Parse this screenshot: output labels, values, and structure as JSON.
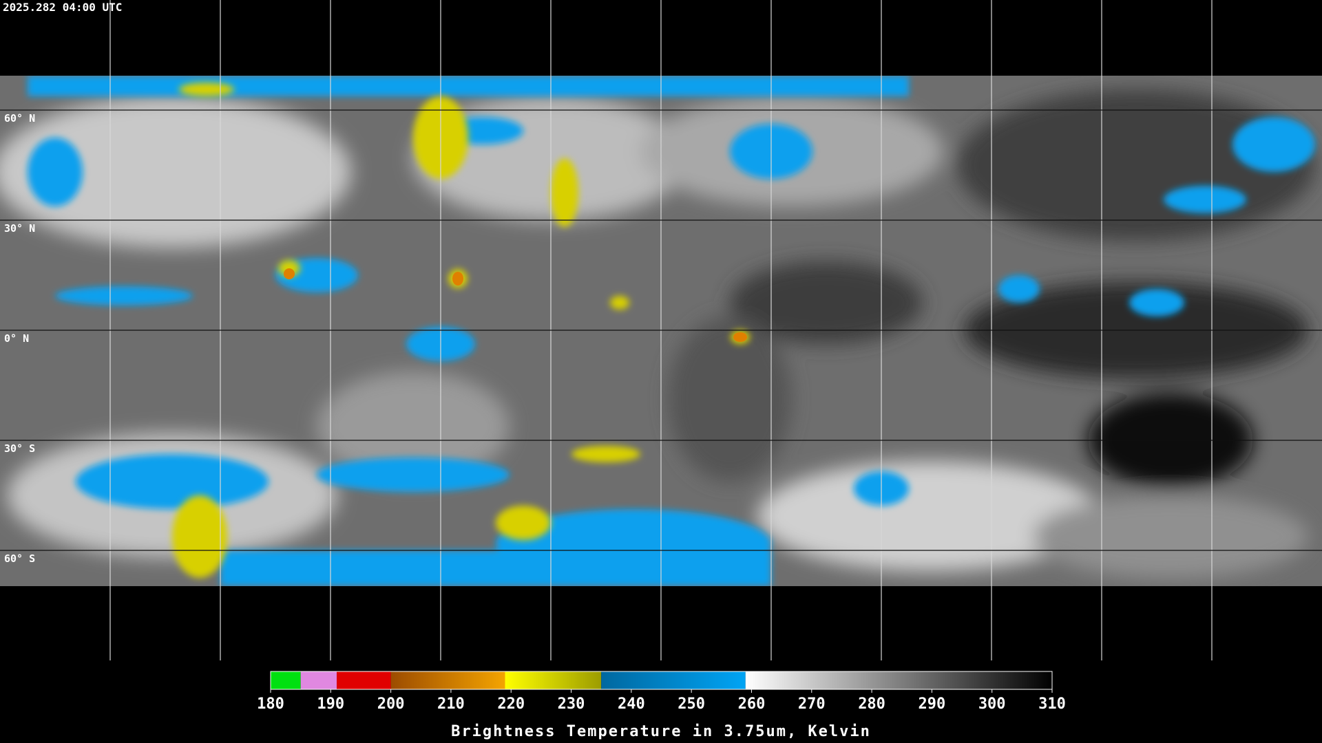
{
  "header": {
    "timestamp": "2025.282 04:00 UTC"
  },
  "map": {
    "latitudes": [
      {
        "value": 60,
        "label": "60° N"
      },
      {
        "value": 30,
        "label": "30° N"
      },
      {
        "value": 0,
        "label": "0° N"
      },
      {
        "value": -30,
        "label": "30° S"
      },
      {
        "value": -60,
        "label": "60° S"
      }
    ]
  },
  "colorbar": {
    "title": "Brightness Temperature in 3.75um, Kelvin",
    "range": [
      180,
      310
    ],
    "ticks": [
      180,
      190,
      200,
      210,
      220,
      230,
      240,
      250,
      260,
      270,
      280,
      290,
      300,
      310
    ],
    "segments": [
      {
        "from": 180,
        "to": 185,
        "colors": [
          "#00e010",
          "#00e010"
        ]
      },
      {
        "from": 185,
        "to": 191,
        "colors": [
          "#e088e0",
          "#e088e0"
        ]
      },
      {
        "from": 191,
        "to": 200,
        "colors": [
          "#e00000",
          "#e00000"
        ]
      },
      {
        "from": 200,
        "to": 219,
        "colors": [
          "#9c4c00",
          "#f4a400"
        ]
      },
      {
        "from": 219,
        "to": 235,
        "colors": [
          "#ffff00",
          "#9c9c00"
        ]
      },
      {
        "from": 235,
        "to": 259,
        "colors": [
          "#0068a0",
          "#00a4f4"
        ]
      },
      {
        "from": 259,
        "to": 310,
        "colors": [
          "#ffffff",
          "#000000"
        ]
      }
    ]
  }
}
